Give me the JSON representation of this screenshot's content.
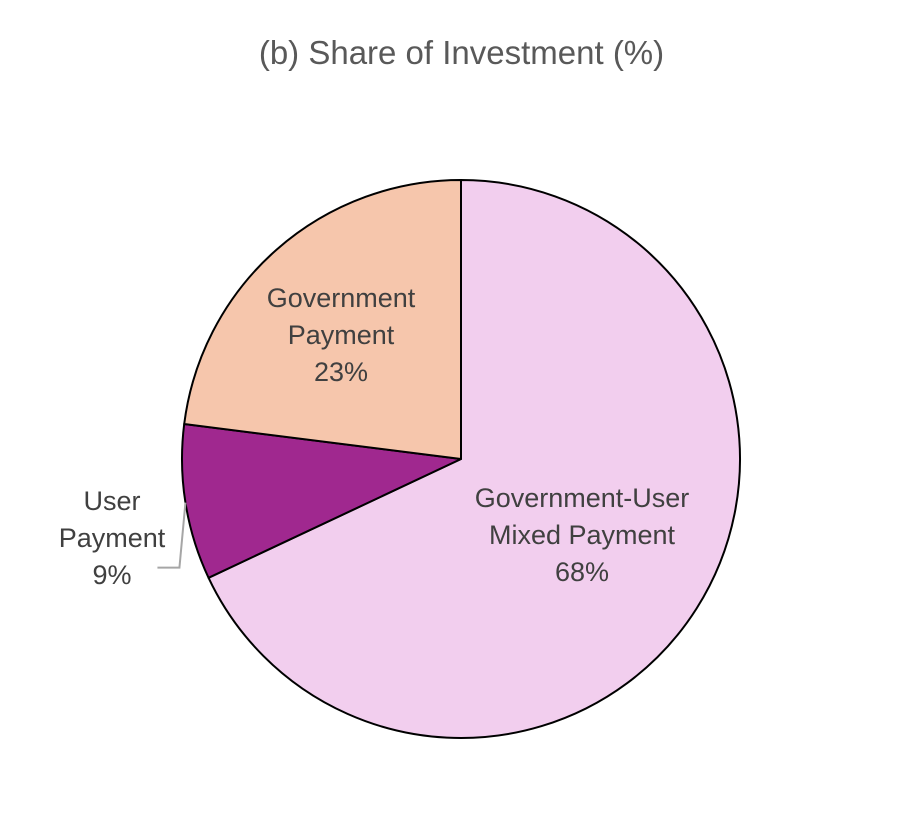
{
  "chart_data": {
    "type": "pie",
    "title": "(b) Share of Investment (%)",
    "slices": [
      {
        "name": "Government-User Mixed Payment",
        "label_lines": [
          "Government-User",
          "Mixed Payment",
          "68%"
        ],
        "value": 68,
        "color": "#F2CEEE"
      },
      {
        "name": "User Payment",
        "label_lines": [
          "User",
          "Payment",
          "9%"
        ],
        "value": 9,
        "color": "#A0288F"
      },
      {
        "name": "Government Payment",
        "label_lines": [
          "Government",
          "Payment",
          "23%"
        ],
        "value": 23,
        "color": "#F6C6AC"
      }
    ],
    "start_angle_deg": 0,
    "direction": "clockwise",
    "edge_color": "#000000",
    "label_color": "#404040",
    "leader_line_color": "#A6A6A6"
  }
}
